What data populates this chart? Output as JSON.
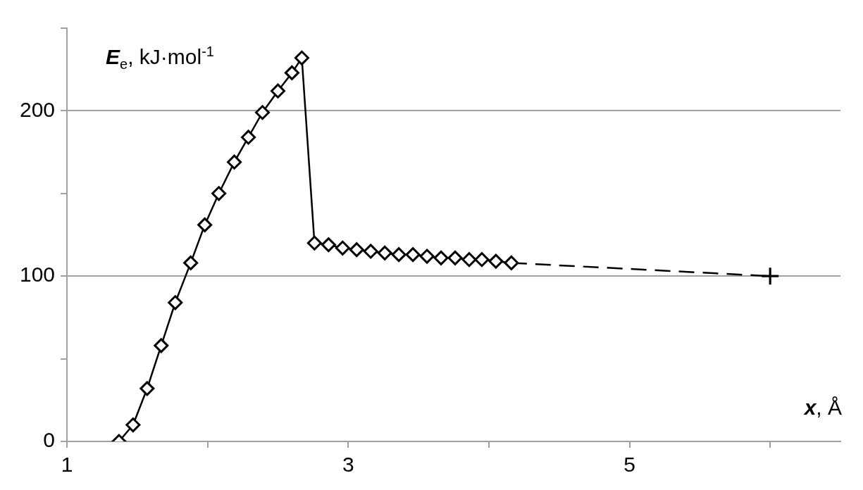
{
  "chart_data": {
    "type": "line",
    "xlabel": "x, Å",
    "ylabel": "E$_{e}$, kJ·mol$^{-1}$",
    "xlim": [
      1,
      6.5
    ],
    "ylim": [
      0,
      250
    ],
    "xticks": [
      1,
      {
        "value": 2,
        "label": null
      },
      3,
      {
        "value": 4,
        "label": null
      },
      5,
      {
        "value": 6,
        "label": null
      }
    ],
    "yticks": [
      0,
      {
        "value": 50,
        "label": null
      },
      100,
      {
        "value": 150,
        "label": null
      },
      200,
      {
        "value": 250,
        "label": null
      }
    ],
    "grid": "y",
    "legend": false,
    "series": [
      {
        "color": "#000000",
        "marker": "diamond",
        "line_style": "solid",
        "x": [
          1.37,
          1.47,
          1.57,
          1.67,
          1.77,
          1.88,
          1.98,
          2.08,
          2.19,
          2.29,
          2.39,
          2.5,
          2.6,
          2.67,
          2.76,
          2.86,
          2.96,
          3.06,
          3.16,
          3.26,
          3.36,
          3.46,
          3.56,
          3.66,
          3.76,
          3.86,
          3.95,
          4.05,
          4.16
        ],
        "values": [
          0,
          10,
          32,
          58,
          84,
          108,
          131,
          150,
          169,
          184,
          199,
          212,
          223,
          232,
          120,
          119,
          117,
          116,
          115,
          114,
          113,
          113,
          112,
          111,
          111,
          110,
          110,
          109,
          108
        ]
      },
      {
        "color": "#000000",
        "marker": "none",
        "line_style": "dashed",
        "x": [
          4.16,
          6
        ],
        "values": [
          108,
          100
        ]
      },
      {
        "type": "scatter",
        "color": "#000000",
        "marker": "cross",
        "x": [
          6
        ],
        "values": [
          100
        ]
      }
    ]
  }
}
